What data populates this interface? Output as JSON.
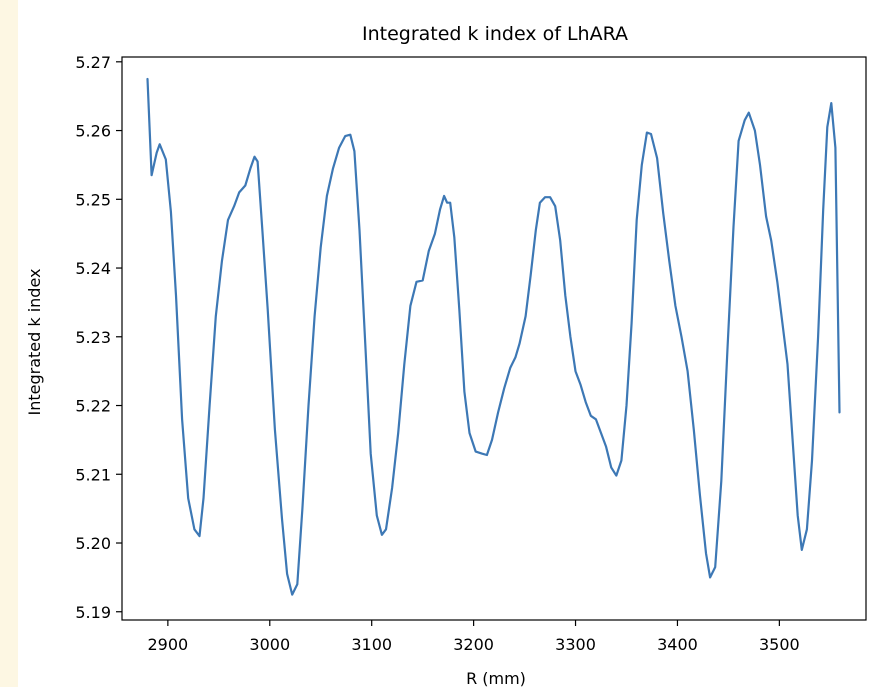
{
  "page": {
    "background_color": "#fdf7e3",
    "figure_background": "#ffffff"
  },
  "chart_data": {
    "type": "line",
    "title": "Integrated k index of LhARA",
    "xlabel": "R (mm)",
    "ylabel": "Integrated k index",
    "xlim": [
      2855,
      3585
    ],
    "ylim": [
      5.1888,
      5.2707
    ],
    "xticks": [
      2900,
      3000,
      3100,
      3200,
      3300,
      3400,
      3500
    ],
    "xtick_labels": [
      "2900",
      "3000",
      "3100",
      "3200",
      "3300",
      "3400",
      "3500"
    ],
    "yticks": [
      5.19,
      5.2,
      5.21,
      5.22,
      5.23,
      5.24,
      5.25,
      5.26,
      5.27
    ],
    "ytick_labels": [
      "5.19",
      "5.20",
      "5.21",
      "5.22",
      "5.23",
      "5.24",
      "5.25",
      "5.26",
      "5.27"
    ],
    "grid": false,
    "legend": "none",
    "series": [
      {
        "color": "#3d78b5",
        "x": [
          2880,
          2884,
          2889,
          2892,
          2898,
          2903,
          2908,
          2914,
          2920,
          2926,
          2931,
          2935,
          2941,
          2947,
          2953,
          2959,
          2965,
          2970,
          2976,
          2981,
          2985,
          2988,
          2993,
          2998,
          3005,
          3012,
          3017,
          3022,
          3027,
          3032,
          3038,
          3044,
          3050,
          3056,
          3062,
          3068,
          3074,
          3079,
          3083,
          3088,
          3094,
          3099,
          3105,
          3110,
          3114,
          3120,
          3126,
          3132,
          3138,
          3144,
          3150,
          3156,
          3162,
          3167,
          3171,
          3174,
          3177,
          3181,
          3186,
          3191,
          3196,
          3202,
          3208,
          3213,
          3218,
          3224,
          3230,
          3236,
          3241,
          3245,
          3251,
          3256,
          3261,
          3265,
          3270,
          3275,
          3280,
          3285,
          3290,
          3295,
          3300,
          3305,
          3310,
          3315,
          3320,
          3325,
          3330,
          3335,
          3340,
          3345,
          3350,
          3355,
          3360,
          3365,
          3370,
          3374,
          3380,
          3386,
          3392,
          3398,
          3404,
          3410,
          3416,
          3422,
          3428,
          3432,
          3437,
          3443,
          3449,
          3455,
          3460,
          3466,
          3470,
          3476,
          3481,
          3487,
          3492,
          3498,
          3503,
          3508,
          3513,
          3518,
          3522,
          3527,
          3532,
          3538,
          3543,
          3547,
          3551,
          3555,
          3559
        ],
        "y": [
          5.2675,
          5.2535,
          5.2568,
          5.258,
          5.2558,
          5.2482,
          5.236,
          5.218,
          5.2065,
          5.202,
          5.201,
          5.2065,
          5.22,
          5.233,
          5.241,
          5.247,
          5.249,
          5.251,
          5.252,
          5.2545,
          5.2562,
          5.2555,
          5.245,
          5.234,
          5.2165,
          5.2035,
          5.1955,
          5.1925,
          5.194,
          5.205,
          5.22,
          5.233,
          5.243,
          5.2505,
          5.2545,
          5.2575,
          5.2592,
          5.2594,
          5.257,
          5.2455,
          5.228,
          5.213,
          5.204,
          5.2012,
          5.202,
          5.208,
          5.216,
          5.226,
          5.2345,
          5.238,
          5.2382,
          5.2425,
          5.245,
          5.2485,
          5.2505,
          5.2495,
          5.2495,
          5.2445,
          5.234,
          5.222,
          5.216,
          5.2133,
          5.213,
          5.2128,
          5.215,
          5.219,
          5.2225,
          5.2255,
          5.227,
          5.229,
          5.233,
          5.239,
          5.2455,
          5.2495,
          5.2503,
          5.2503,
          5.249,
          5.244,
          5.236,
          5.23,
          5.225,
          5.223,
          5.2205,
          5.2185,
          5.218,
          5.216,
          5.214,
          5.211,
          5.2098,
          5.212,
          5.22,
          5.232,
          5.247,
          5.255,
          5.2597,
          5.2595,
          5.256,
          5.248,
          5.241,
          5.2345,
          5.23,
          5.225,
          5.2165,
          5.207,
          5.1985,
          5.195,
          5.1965,
          5.209,
          5.228,
          5.246,
          5.2585,
          5.2615,
          5.2626,
          5.26,
          5.255,
          5.2475,
          5.244,
          5.238,
          5.232,
          5.226,
          5.215,
          5.204,
          5.199,
          5.202,
          5.212,
          5.23,
          5.2485,
          5.2605,
          5.264,
          5.2575,
          5.219
        ]
      }
    ]
  }
}
